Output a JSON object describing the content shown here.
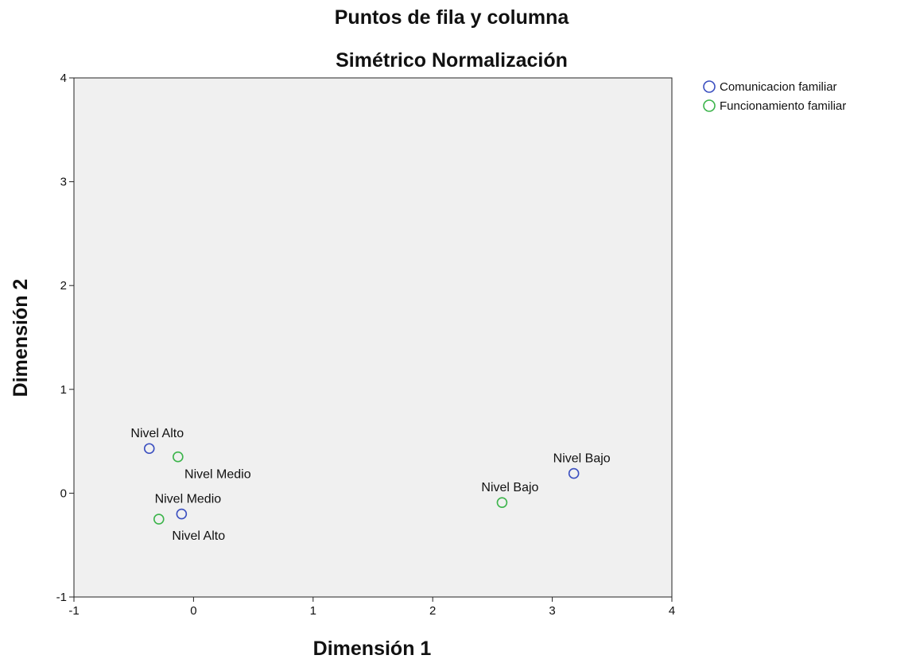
{
  "chart_data": {
    "type": "scatter",
    "title": "Puntos de fila y columna",
    "subtitle": "Simétrico Normalización",
    "xlabel": "Dimensión 1",
    "ylabel": "Dimensión 2",
    "xlim": [
      -1,
      4
    ],
    "ylim": [
      -1,
      4
    ],
    "xticks": [
      -1,
      0,
      1,
      2,
      3,
      4
    ],
    "yticks": [
      -1,
      0,
      1,
      2,
      3,
      4
    ],
    "grid": false,
    "legend_position": "right",
    "background_color": "#f0f0f0",
    "series": [
      {
        "name": "Comunicacion familiar",
        "color": "#3b4fc0",
        "points": [
          {
            "label": "Nivel Alto",
            "x": -0.37,
            "y": 0.43
          },
          {
            "label": "Nivel Medio",
            "x": -0.1,
            "y": -0.2
          },
          {
            "label": "Nivel Bajo",
            "x": 3.18,
            "y": 0.19
          }
        ]
      },
      {
        "name": "Funcionamiento familiar",
        "color": "#3cb44b",
        "points": [
          {
            "label": "Nivel Medio",
            "x": -0.13,
            "y": 0.35
          },
          {
            "label": "Nivel Alto",
            "x": -0.29,
            "y": -0.25
          },
          {
            "label": "Nivel Bajo",
            "x": 2.58,
            "y": -0.09
          }
        ]
      }
    ]
  }
}
